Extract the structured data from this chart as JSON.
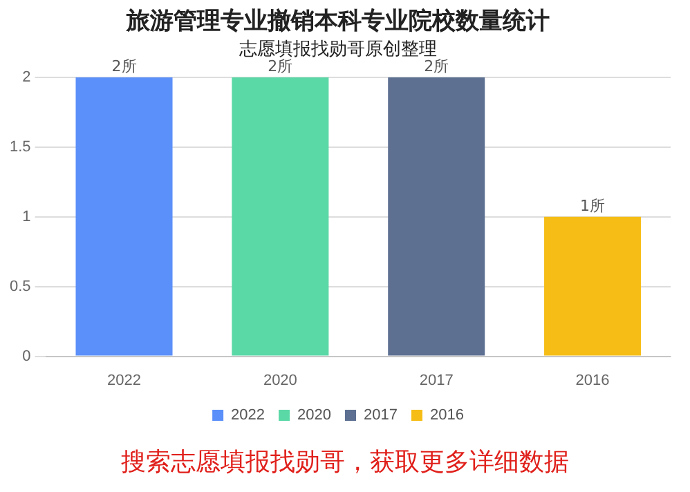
{
  "chart_data": {
    "type": "bar",
    "title": "旅游管理专业撤销本科专业院校数量统计",
    "subtitle": "志愿填报找勋哥原创整理",
    "categories": [
      "2022",
      "2020",
      "2017",
      "2016"
    ],
    "series": [
      {
        "name": "2022",
        "color": "#5b8ff9",
        "values": [
          2,
          null,
          null,
          null
        ],
        "value_labels": [
          "2所",
          null,
          null,
          null
        ]
      },
      {
        "name": "2020",
        "color": "#5ad8a6",
        "values": [
          null,
          2,
          null,
          null
        ],
        "value_labels": [
          null,
          "2所",
          null,
          null
        ]
      },
      {
        "name": "2017",
        "color": "#5d7092",
        "values": [
          null,
          null,
          2,
          null
        ],
        "value_labels": [
          null,
          null,
          "2所",
          null
        ]
      },
      {
        "name": "2016",
        "color": "#f6bd16",
        "values": [
          null,
          null,
          null,
          1
        ],
        "value_labels": [
          null,
          null,
          null,
          "1所"
        ]
      }
    ],
    "ylim": [
      0,
      2
    ],
    "yticks": [
      0,
      0.5,
      1,
      1.5,
      2
    ],
    "grid": "y",
    "legend": "bottom",
    "stacked": true,
    "annotations": [
      "搜索志愿填报找勋哥，获取更多详细数据"
    ]
  }
}
